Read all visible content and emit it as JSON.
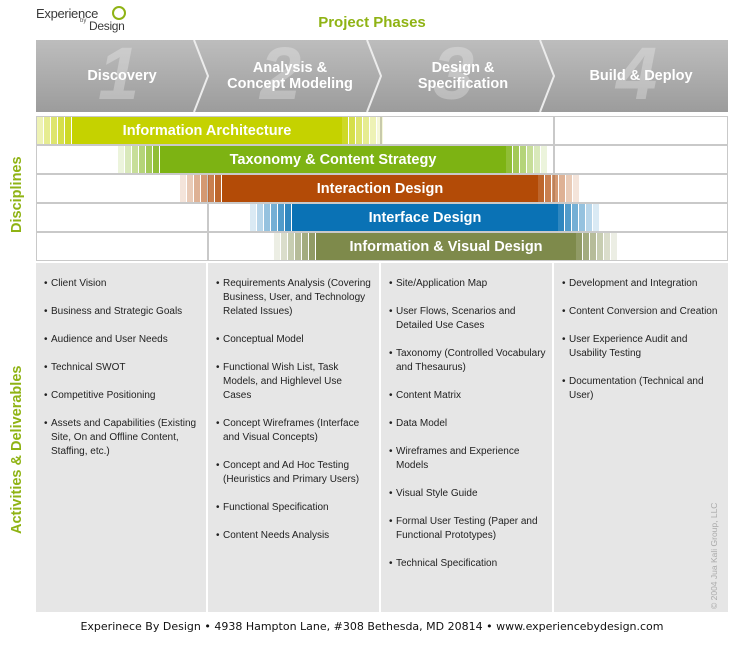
{
  "logo": {
    "line1": "Experience",
    "by": "by",
    "line2": "Design"
  },
  "title": "Project Phases",
  "phases": [
    {
      "number": "1",
      "label": "Discovery"
    },
    {
      "number": "2",
      "label": "Analysis &\nConcept Modeling"
    },
    {
      "number": "3",
      "label": "Design &\nSpecification"
    },
    {
      "number": "4",
      "label": "Build & Deploy"
    }
  ],
  "side_labels": {
    "disciplines": "Disciplines",
    "activities": "Activities & Deliverables"
  },
  "disciplines": [
    {
      "label": "Information Architecture",
      "color": "#c5d200"
    },
    {
      "label": "Taxonomy & Content Strategy",
      "color": "#7db313"
    },
    {
      "label": "Interaction Design",
      "color": "#b34b07"
    },
    {
      "label": "Interface Design",
      "color": "#0a72b5"
    },
    {
      "label": "Information & Visual Design",
      "color": "#7e8a4b"
    }
  ],
  "columns": [
    {
      "items": [
        "Client Vision",
        "Business and Strategic Goals",
        "Audience and  User Needs",
        "Technical SWOT",
        "Competitive Positioning",
        "Assets and Capabilities (Existing Site, On and Offline Content, Staffing, etc.)"
      ]
    },
    {
      "items": [
        "Requirements Analysis (Covering Business, User, and Technology Related Issues)",
        "Conceptual Model",
        "Functional Wish List, Task Models, and Highlevel Use Cases",
        "Concept Wireframes (Interface and Visual Concepts)",
        "Concept and Ad Hoc Testing (Heuristics and Primary Users)",
        "Functional Specification",
        "Content Needs Analysis"
      ]
    },
    {
      "items": [
        "Site/Application Map",
        "User Flows, Scenarios and Detailed Use Cases",
        "Taxonomy (Controlled Vocabulary and Thesaurus)",
        "Content Matrix",
        "Data Model",
        "Wireframes and Experience Models",
        "Visual Style Guide",
        "Formal User Testing (Paper and Functional Prototypes)",
        "Technical Specification"
      ]
    },
    {
      "items": [
        "Development and Integration",
        "Content Conversion and Creation",
        "User Experience Audit and Usability Testing",
        "Documentation (Technical and User)"
      ]
    }
  ],
  "copyright": "© 2004 Jua Kali Group, LLC",
  "footer": "Experinece By Design • 4938 Hampton Lane, #308 Bethesda, MD 20814 • www.experiencebydesign.com",
  "colors": {
    "accent": "#8fb314",
    "phase_gray": "#a9a9a9",
    "column_bg": "#e6e6e6"
  }
}
